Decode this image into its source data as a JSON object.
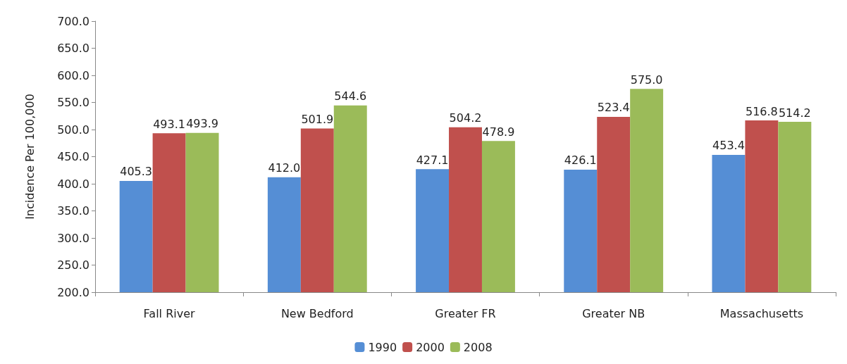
{
  "chart_data": {
    "type": "bar",
    "ylabel": "Incidence Per 100,000",
    "categories": [
      "Fall River",
      "New Bedford",
      "Greater FR",
      "Greater NB",
      "Massachusetts"
    ],
    "series": [
      {
        "name": "1990",
        "color": "#558ed5",
        "values": [
          405.3,
          412.0,
          427.1,
          426.1,
          453.4
        ],
        "value_labels": [
          "405.3",
          "412.0",
          "427.1",
          "426.1",
          "453.4"
        ]
      },
      {
        "name": "2000",
        "color": "#c0504d",
        "values": [
          493.1,
          501.9,
          504.2,
          523.4,
          516.8
        ],
        "value_labels": [
          "493.1",
          "501.9",
          "504.2",
          "523.4",
          "516.8"
        ]
      },
      {
        "name": "2008",
        "color": "#9bbb59",
        "values": [
          493.9,
          544.6,
          478.9,
          575.0,
          514.2
        ],
        "value_labels": [
          "493.9",
          "544.6",
          "478.9",
          "575.0",
          "514.2"
        ]
      }
    ],
    "ylim": [
      200,
      700
    ],
    "yticks": [
      {
        "value": 200,
        "label": "200.0"
      },
      {
        "value": 250,
        "label": "250.0"
      },
      {
        "value": 300,
        "label": "300.0"
      },
      {
        "value": 350,
        "label": "350.0"
      },
      {
        "value": 400,
        "label": "400.0"
      },
      {
        "value": 450,
        "label": "450.0"
      },
      {
        "value": 500,
        "label": "500.0"
      },
      {
        "value": 550,
        "label": "550.0"
      },
      {
        "value": 600,
        "label": "600.0"
      },
      {
        "value": 650,
        "label": "650.0"
      },
      {
        "value": 700,
        "label": "700.0"
      }
    ],
    "grid": false,
    "legend": "bottom"
  }
}
